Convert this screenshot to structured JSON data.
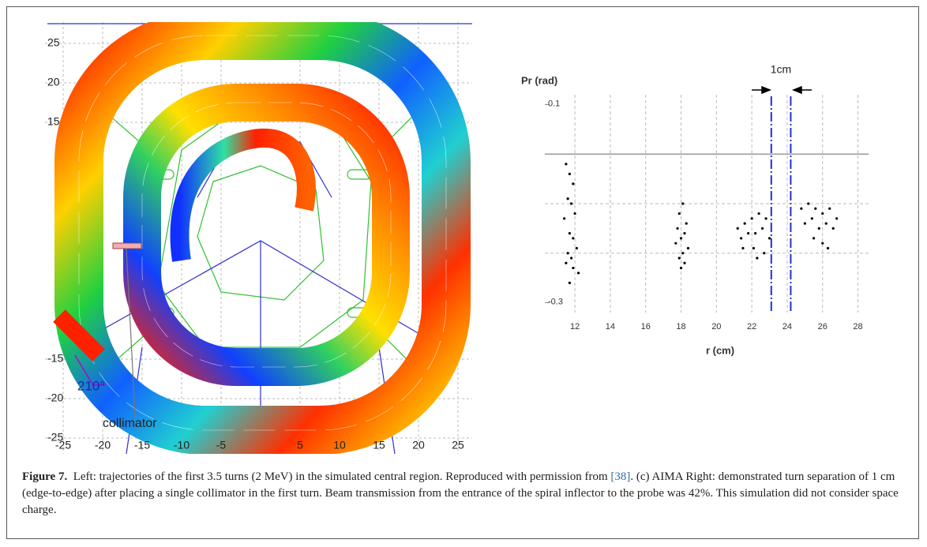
{
  "chart_data": [
    {
      "type": "trajectory",
      "annotations": [
        "210°",
        "collimator"
      ],
      "xlim": [
        -27.3,
        26.8
      ],
      "ylim": [
        -27,
        27.7
      ],
      "xticks": [
        -25,
        -20,
        -15,
        -10,
        -5,
        5,
        10,
        15,
        20,
        25
      ],
      "yticks": [
        25,
        20,
        15,
        -15,
        -20,
        -25
      ],
      "grid": true
    },
    {
      "type": "scatter",
      "y_label": "Pr (rad)",
      "x_label": "r (cm)",
      "annotation": "1cm",
      "xlim": [
        10.3,
        28.6
      ],
      "ylim": [
        -0.32,
        0.12
      ],
      "xticks": [
        12,
        14,
        16,
        18,
        20,
        22,
        24,
        26,
        28
      ],
      "yticks": [
        0.1,
        -0.3
      ],
      "ygrid": [
        0,
        -0.1,
        -0.2
      ],
      "vlines": [
        23.1,
        24.2
      ],
      "color": "#000000",
      "x": [
        11.5,
        11.7,
        11.9,
        11.6,
        11.8,
        12.0,
        11.4,
        11.7,
        11.9,
        12.1,
        11.6,
        11.8,
        11.5,
        11.9,
        12.2,
        11.7,
        18.1,
        17.9,
        18.3,
        17.8,
        18.2,
        18.0,
        17.7,
        18.4,
        18.1,
        17.9,
        18.2,
        18.0,
        21.2,
        21.6,
        22.0,
        22.4,
        22.8,
        21.4,
        21.8,
        22.2,
        22.6,
        23.0,
        21.5,
        22.1,
        22.7,
        22.3,
        24.8,
        25.2,
        25.6,
        26.0,
        26.4,
        26.8,
        25.0,
        25.4,
        25.8,
        26.2,
        26.6,
        25.5,
        26.0,
        26.3
      ],
      "y": [
        -0.02,
        -0.04,
        -0.06,
        -0.09,
        -0.1,
        -0.12,
        -0.13,
        -0.16,
        -0.17,
        -0.19,
        -0.2,
        -0.21,
        -0.22,
        -0.23,
        -0.24,
        -0.26,
        -0.1,
        -0.12,
        -0.14,
        -0.15,
        -0.16,
        -0.17,
        -0.18,
        -0.19,
        -0.2,
        -0.21,
        -0.22,
        -0.23,
        -0.15,
        -0.14,
        -0.13,
        -0.12,
        -0.13,
        -0.17,
        -0.16,
        -0.16,
        -0.15,
        -0.17,
        -0.19,
        -0.19,
        -0.2,
        -0.21,
        -0.11,
        -0.1,
        -0.11,
        -0.12,
        -0.11,
        -0.13,
        -0.14,
        -0.13,
        -0.15,
        -0.14,
        -0.15,
        -0.17,
        -0.18,
        -0.19
      ]
    }
  ],
  "caption": {
    "label": "Figure 7.",
    "text_before": "Left: trajectories of the first 3.5 turns (2 MeV) in the simulated central region. Reproduced with permission from ",
    "ref": "[38]",
    "text_after": ". (c) AIMA Right: demonstrated turn separation of 1 cm (edge-to-edge) after placing a single collimator in the first turn. Beam transmission from the entrance of the spiral inflector to the probe was 42%. This simulation did not consider space charge."
  }
}
